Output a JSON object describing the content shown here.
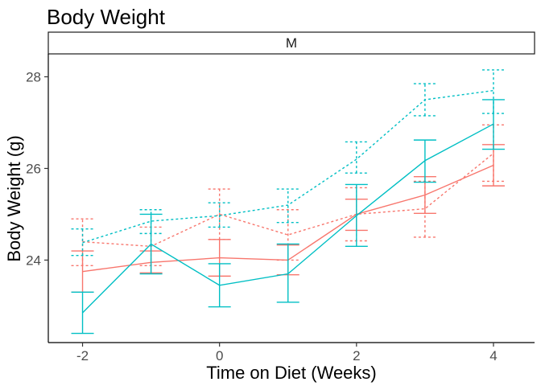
{
  "chart_data": {
    "type": "line",
    "title": "Body Weight",
    "facet_label": "M",
    "xlabel": "Time on Diet (Weeks)",
    "ylabel": "Body Weight (g)",
    "xlim": [
      -2.5,
      4.6
    ],
    "ylim": [
      22.2,
      28.5
    ],
    "x_ticks": [
      -2,
      0,
      2,
      4
    ],
    "y_ticks": [
      24,
      26,
      28
    ],
    "grid": false,
    "legend": "none",
    "x": [
      -2,
      -1,
      0,
      1,
      2,
      3,
      4
    ],
    "series": [
      {
        "color": "#F8766D",
        "line_style": "solid",
        "mean": [
          23.75,
          23.95,
          24.05,
          24.0,
          25.0,
          25.42,
          26.07
        ],
        "lower": [
          23.3,
          23.72,
          23.65,
          23.68,
          24.65,
          25.02,
          25.62
        ],
        "upper": [
          24.2,
          24.2,
          24.45,
          24.33,
          25.33,
          25.82,
          26.52
        ]
      },
      {
        "color": "#F8766D",
        "line_style": "dashed",
        "mean": [
          24.4,
          24.3,
          25.0,
          24.55,
          25.0,
          25.12,
          26.33
        ],
        "lower": [
          23.88,
          23.88,
          24.45,
          24.0,
          24.42,
          24.5,
          25.72
        ],
        "upper": [
          24.9,
          24.72,
          25.55,
          25.1,
          25.58,
          25.72,
          26.95
        ]
      },
      {
        "color": "#00BFC4",
        "line_style": "solid",
        "mean": [
          22.85,
          24.35,
          23.45,
          23.7,
          24.97,
          26.17,
          26.97
        ],
        "lower": [
          22.4,
          23.7,
          22.98,
          23.08,
          24.3,
          25.7,
          26.42
        ],
        "upper": [
          23.3,
          25.0,
          23.92,
          24.35,
          25.65,
          26.62,
          27.5
        ]
      },
      {
        "color": "#00BFC4",
        "line_style": "dashed",
        "mean": [
          24.38,
          24.85,
          24.97,
          25.2,
          26.2,
          27.5,
          27.7
        ],
        "lower": [
          24.1,
          24.58,
          24.72,
          24.82,
          25.9,
          27.15,
          27.2
        ],
        "upper": [
          24.68,
          25.1,
          25.25,
          25.55,
          26.58,
          27.85,
          28.15
        ]
      }
    ]
  }
}
